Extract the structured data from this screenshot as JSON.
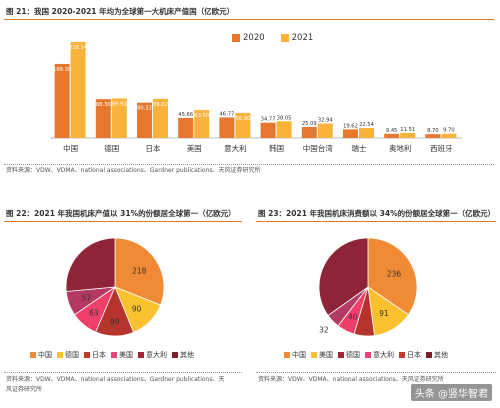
{
  "fig21": {
    "title": "图 21：我国 2020-2021 年均为全球第一大机床产值国（亿欧元）",
    "source": "资料来源：VDW、VDMA、national associations、Gardner publications、天风证券研究所"
  },
  "fig22": {
    "title": "图 22：2021 年我国机床产值以 31%的份额居全球第一（亿欧元）",
    "source_line1": "资料来源：VDW、VDMA、national associations、Gardner publications、天",
    "source_line2": "风证券研究所"
  },
  "fig23": {
    "title": "图 23：2021 年我国机床消费额以 34%的份额居全球第一（亿欧元）",
    "source": "资料来源：VDW、VDMA、national associations、天风证券研究所"
  },
  "watermark": "头条 @竖华智君",
  "colors": {
    "s2020": "#e8772e",
    "s2021": "#f9b23a",
    "china": "#f08a34",
    "germany": "#fbc02d",
    "japan": "#b5342b",
    "usa": "#ef3f6b",
    "italy": "#b53a63",
    "other": "#8f2438",
    "legend_japan": "#c0392b",
    "legend_usa": "#e8437a",
    "legend_italy": "#a4233a",
    "legend_other": "#7b1e2b"
  },
  "chart_data": [
    {
      "type": "bar",
      "categories": [
        "中国",
        "德国",
        "日本",
        "美国",
        "意大利",
        "韩国",
        "中国台湾",
        "瑞士",
        "奥地利",
        "西班牙"
      ],
      "series": [
        {
          "name": "2020",
          "values": [
            168.3,
            88.3,
            80.32,
            45.66,
            46.77,
            34.77,
            25.09,
            19.62,
            9.45,
            8.7
          ],
          "labels": [
            "168.30",
            "88.30",
            "80.32",
            "45.66",
            "46.77",
            "34.77",
            "25.09",
            "19.62",
            "9.45",
            "8.70"
          ]
        },
        {
          "name": "2021",
          "values": [
            218.14,
            89.91,
            89.02,
            63.5,
            56.9,
            38.05,
            32.94,
            22.54,
            11.51,
            9.7
          ],
          "labels": [
            "218.14",
            "89.91",
            "89.02",
            "63.50",
            "56.90",
            "38.05",
            "32.94",
            "22.54",
            "11.51",
            "9.70"
          ]
        }
      ],
      "ylim": [
        0,
        250
      ]
    },
    {
      "type": "pie",
      "labels": [
        "中国",
        "德国",
        "日本",
        "美国",
        "意大利",
        "其他"
      ],
      "values": [
        218,
        90,
        89,
        63,
        57,
        186
      ],
      "slice_labels": [
        "218",
        "90",
        "89",
        "63",
        "57",
        ""
      ],
      "legend": "bottom"
    },
    {
      "type": "pie",
      "labels": [
        "中国",
        "美国",
        "德国",
        "意大利",
        "日本",
        "其他"
      ],
      "values": [
        236,
        91,
        46,
        40,
        32,
        238
      ],
      "slice_labels": [
        "236",
        "91",
        "",
        "40",
        "32",
        ""
      ],
      "legend": "bottom"
    }
  ]
}
